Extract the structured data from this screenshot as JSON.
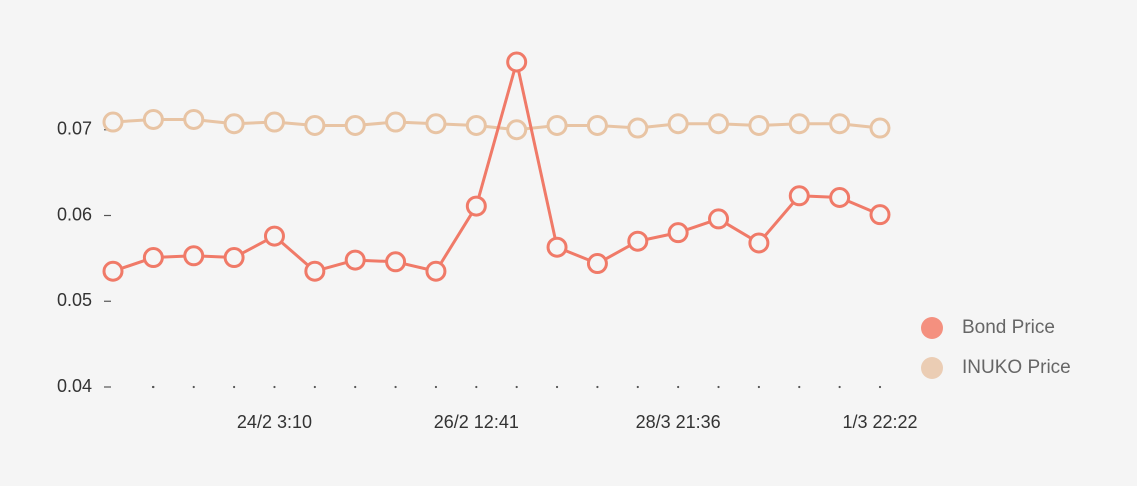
{
  "chart_data": {
    "type": "line",
    "categories": [
      null,
      null,
      null,
      null,
      "24/2 3:10",
      null,
      null,
      null,
      null,
      "26/2 12:41",
      null,
      null,
      null,
      null,
      "28/3 21:36",
      null,
      null,
      null,
      null,
      "1/3 22:22"
    ],
    "series": [
      {
        "name": "Bond Price",
        "color": "#f07a68",
        "legend_color": "#f4907f",
        "values": [
          0.0535,
          0.0551,
          0.0553,
          0.0551,
          0.0576,
          0.0535,
          0.0548,
          0.0546,
          0.0535,
          0.0611,
          0.0779,
          0.0563,
          0.0544,
          0.057,
          0.058,
          0.0596,
          0.0568,
          0.0623,
          0.0621,
          0.0601
        ]
      },
      {
        "name": "INUKO Price",
        "color": "#e8c4a4",
        "legend_color": "#ebcdb4",
        "values": [
          0.0709,
          0.0712,
          0.0712,
          0.0707,
          0.0709,
          0.0705,
          0.0705,
          0.0709,
          0.0707,
          0.0705,
          0.07,
          0.0705,
          0.0705,
          0.0702,
          0.0707,
          0.0707,
          0.0705,
          0.0707,
          0.0707,
          0.0702
        ]
      }
    ],
    "ylim": [
      0.04,
      0.08
    ],
    "yticks": [
      0.04,
      0.05,
      0.06,
      0.07
    ],
    "legend": "right"
  }
}
